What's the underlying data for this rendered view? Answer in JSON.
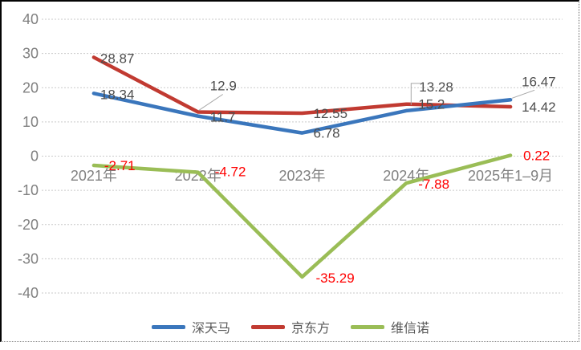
{
  "chart_data": {
    "type": "line",
    "categories": [
      "2021年",
      "2022年",
      "2023年",
      "2024年",
      "2025年1–9月"
    ],
    "series": [
      {
        "name": "深天马",
        "color": "#3A76BC",
        "label_color": "#4D4D4D",
        "values": [
          18.34,
          11.7,
          6.78,
          13.28,
          16.47
        ],
        "label_offsets": [
          [
            8,
            7
          ],
          [
            15,
            7
          ],
          [
            14,
            6
          ],
          [
            16,
            -24
          ],
          [
            14,
            -17
          ]
        ],
        "leaders": {
          "3": [
            [
              18,
              -34
            ],
            [
              6,
              -34
            ],
            [
              6,
              -7
            ]
          ],
          "4": [
            [
              30,
              -12
            ],
            [
              2,
              -2
            ]
          ]
        }
      },
      {
        "name": "京东方",
        "color": "#C13A31",
        "label_color": "#4D4D4D",
        "values": [
          28.87,
          12.9,
          12.55,
          15.2,
          14.42
        ],
        "label_offsets": [
          [
            8,
            7
          ],
          [
            15,
            -27
          ],
          [
            14,
            6
          ],
          [
            15,
            6
          ],
          [
            14,
            6
          ]
        ],
        "leaders": {
          "1": [
            [
              31,
              -22
            ],
            [
              1,
              -2
            ]
          ]
        }
      },
      {
        "name": "维信诺",
        "color": "#9ABD56",
        "label_color": "#FF0000",
        "values": [
          -2.71,
          -4.72,
          -35.29,
          -7.88,
          0.22
        ],
        "label_offsets": [
          [
            13,
            6
          ],
          [
            21,
            5
          ],
          [
            17,
            7
          ],
          [
            15,
            7
          ],
          [
            16,
            6
          ]
        ],
        "leaders": {}
      }
    ],
    "ylim": [
      -40,
      40
    ],
    "yticks": [
      40,
      30,
      20,
      10,
      0,
      -10,
      -20,
      -30,
      -40
    ],
    "grid": "horizontal-dotted",
    "grid_color": "#C9C9C9",
    "axis_label_color": "#808080",
    "leader_color": "#A6A6A6",
    "legend_position": "bottom",
    "legend_text_color": "#595959"
  }
}
